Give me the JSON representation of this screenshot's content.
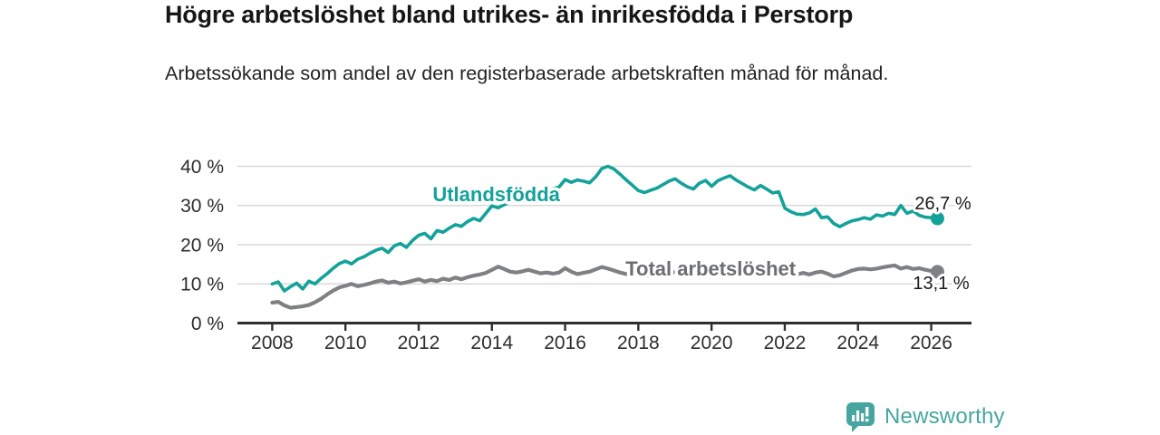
{
  "header": {
    "title": "Högre arbetslöshet bland utrikes- än inrikesfödda i Perstorp",
    "subtitle": "Arbetssökande som andel av den registerbaserade arbetskraften månad för månad."
  },
  "footer": {
    "brand": "Newsworthy",
    "logo_icon": "bar-chart-speech-bubble-icon"
  },
  "colors": {
    "brand": "#46a5a0",
    "teal_line": "#13a29a",
    "gray_line": "#7e8084",
    "gray_label": "#6c6e72",
    "axis": "#2e2e2e",
    "axis_text": "#2d2d2d",
    "grid": "#d9d9d9",
    "value_text": "#1a1a1a"
  },
  "chart_data": {
    "type": "line",
    "title": "Högre arbetslöshet bland utrikes- än inrikesfödda i Perstorp",
    "subtitle": "Arbetssökande som andel av den registerbaserade arbetskraften månad för månad.",
    "xlabel": "",
    "ylabel": "",
    "grid": true,
    "xlim": [
      2007.05,
      2027.1
    ],
    "ylim": [
      0,
      40
    ],
    "x_start": 2008.0,
    "x_step_years": 0.1667,
    "y_ticks": {
      "values": [
        0,
        10,
        20,
        30,
        40
      ],
      "labels": [
        "0 %",
        "10 %",
        "20 %",
        "30 %",
        "40 %"
      ]
    },
    "x_ticks": {
      "values": [
        2008,
        2010,
        2012,
        2014,
        2016,
        2018,
        2020,
        2022,
        2024,
        2026
      ],
      "labels": [
        "2008",
        "2010",
        "2012",
        "2014",
        "2016",
        "2018",
        "2020",
        "2022",
        "2024",
        "2026"
      ]
    },
    "series": [
      {
        "name": "Utlandsfödda",
        "slug": "utlandsfodda",
        "color": "#13a29a",
        "label_color": "#13a29a",
        "stroke_width": 3.6,
        "label_at": {
          "x": 2012.38,
          "y": 31.1
        },
        "end_dot": true,
        "end_label": {
          "text": "26,7 %",
          "x": 2025.55,
          "y": 29.05
        },
        "end_value": 26.7,
        "values": [
          10.0,
          10.5,
          8.2,
          9.3,
          10.2,
          8.7,
          10.7,
          10.0,
          11.4,
          12.6,
          14.0,
          15.2,
          15.8,
          15.1,
          16.3,
          16.9,
          17.8,
          18.6,
          19.1,
          18.0,
          19.7,
          20.3,
          19.3,
          21.1,
          22.4,
          22.9,
          21.5,
          23.6,
          23.2,
          24.2,
          25.1,
          24.7,
          25.9,
          26.7,
          26.1,
          28.0,
          29.9,
          29.4,
          30.2,
          30.9,
          31.7,
          32.3,
          32.7,
          33.2,
          33.0,
          33.8,
          34.3,
          34.7,
          36.6,
          35.9,
          36.5,
          36.2,
          35.8,
          37.3,
          39.4,
          40.0,
          39.3,
          38.0,
          36.5,
          35.2,
          33.8,
          33.3,
          33.9,
          34.4,
          35.3,
          36.2,
          36.8,
          35.7,
          34.8,
          34.2,
          35.7,
          36.4,
          34.9,
          36.3,
          37.0,
          37.6,
          36.5,
          35.6,
          34.7,
          34.0,
          35.1,
          34.2,
          33.2,
          33.5,
          29.3,
          28.4,
          27.8,
          27.7,
          28.1,
          29.1,
          26.9,
          27.1,
          25.4,
          24.6,
          25.4,
          26.1,
          26.4,
          26.9,
          26.5,
          27.6,
          27.3,
          28.0,
          27.7,
          30.0,
          28.0,
          28.6,
          27.5,
          27.0,
          26.9,
          26.7
        ]
      },
      {
        "name": "Total arbetslöshet",
        "slug": "total-arbetsloshet",
        "color": "#7e8084",
        "label_color": "#6c6e72",
        "stroke_width": 4.2,
        "label_at": {
          "x": 2017.65,
          "y": 12.15
        },
        "end_dot": true,
        "end_label": {
          "text": "13,1 %",
          "x": 2025.5,
          "y": 8.65
        },
        "end_value": 13.1,
        "values": [
          5.2,
          5.4,
          4.5,
          3.9,
          4.1,
          4.3,
          4.6,
          5.3,
          6.2,
          7.3,
          8.3,
          9.1,
          9.5,
          10.0,
          9.4,
          9.7,
          10.1,
          10.6,
          10.9,
          10.3,
          10.6,
          10.1,
          10.4,
          10.8,
          11.2,
          10.6,
          11.0,
          10.7,
          11.3,
          11.0,
          11.6,
          11.2,
          11.7,
          12.1,
          12.4,
          12.8,
          13.6,
          14.4,
          13.8,
          13.1,
          12.9,
          13.2,
          13.6,
          13.1,
          12.7,
          12.9,
          12.6,
          12.9,
          14.0,
          13.1,
          12.5,
          12.8,
          13.1,
          13.7,
          14.3,
          13.9,
          13.4,
          12.9,
          12.5,
          12.3,
          12.6,
          12.3,
          12.1,
          12.4,
          12.6,
          12.8,
          13.0,
          12.7,
          12.5,
          12.8,
          13.0,
          13.2,
          13.5,
          13.9,
          14.1,
          13.8,
          13.5,
          13.3,
          13.1,
          12.9,
          12.7,
          12.6,
          12.5,
          12.4,
          12.3,
          12.2,
          12.4,
          12.8,
          12.4,
          12.9,
          13.1,
          12.6,
          11.9,
          12.2,
          12.8,
          13.4,
          13.8,
          13.9,
          13.7,
          13.9,
          14.2,
          14.5,
          14.7,
          13.9,
          14.3,
          13.8,
          14.0,
          13.6,
          13.3,
          13.1
        ]
      }
    ]
  }
}
